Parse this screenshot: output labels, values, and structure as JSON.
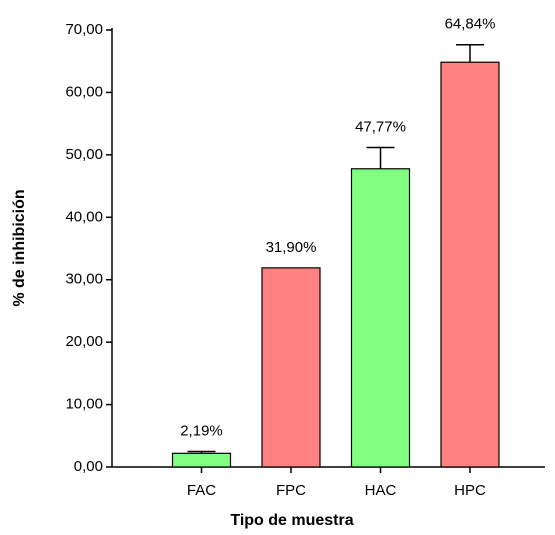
{
  "chart_data": {
    "type": "bar",
    "x_label": "Tipo de muestra",
    "y_label": "% de inhibición",
    "categories": [
      "FAC",
      "FPC",
      "HAC",
      "HPC"
    ],
    "values": [
      2.19,
      31.9,
      47.77,
      64.84
    ],
    "value_labels": [
      "2,19%",
      "31,90%",
      "47,77%",
      "64,84%"
    ],
    "errors": [
      0.3,
      0,
      3.4,
      2.8
    ],
    "colors": [
      "#80ff80",
      "#ff8080",
      "#80ff80",
      "#ff8080"
    ],
    "ylim": [
      0,
      70
    ],
    "yticks": [
      {
        "value": 0,
        "label": "0,00"
      },
      {
        "value": 10,
        "label": "10,00"
      },
      {
        "value": 20,
        "label": "20,00"
      },
      {
        "value": 30,
        "label": "30,00"
      },
      {
        "value": 40,
        "label": "40,00"
      },
      {
        "value": 50,
        "label": "50,00"
      },
      {
        "value": 60,
        "label": "60,00"
      },
      {
        "value": 70,
        "label": "70,00"
      }
    ]
  }
}
